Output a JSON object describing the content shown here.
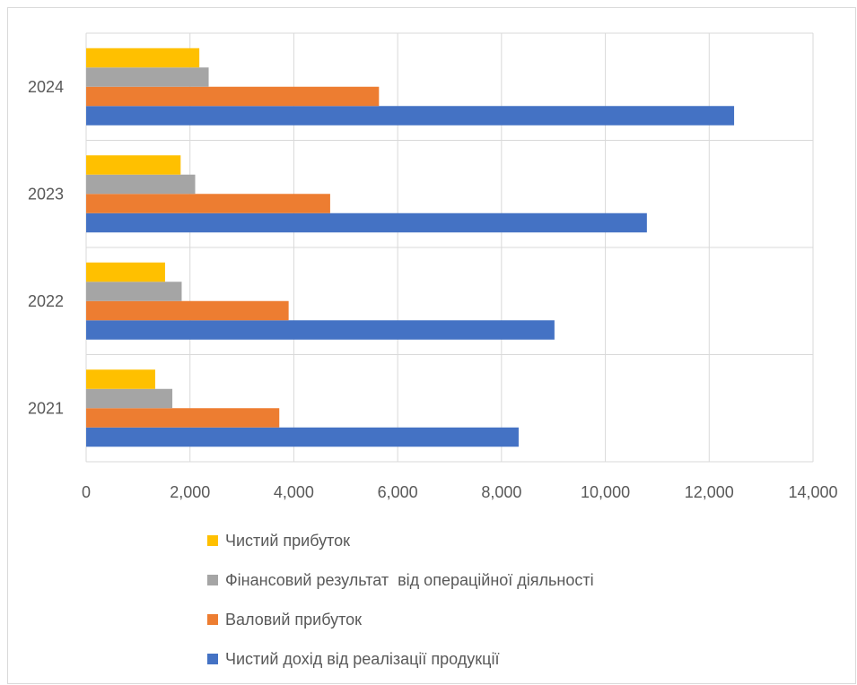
{
  "chart_data": {
    "type": "bar",
    "orientation": "horizontal",
    "categories": [
      "2021",
      "2022",
      "2023",
      "2024"
    ],
    "series": [
      {
        "name": "Чистий дохід від реалізації продукції",
        "color": "#4472C4",
        "values": [
          8330,
          9020,
          10800,
          12480
        ]
      },
      {
        "name": "Валовий прибуток",
        "color": "#ED7D31",
        "values": [
          3720,
          3900,
          4700,
          5640
        ]
      },
      {
        "name": "Фінансовий результат  від операційної діяльності",
        "color": "#A5A5A5",
        "values": [
          1660,
          1840,
          2100,
          2360
        ]
      },
      {
        "name": "Чистий прибуток",
        "color": "#FFC000",
        "values": [
          1330,
          1520,
          1820,
          2180
        ]
      }
    ],
    "xlim": [
      0,
      14000
    ],
    "x_ticks": [
      "0",
      "2,000",
      "4,000",
      "6,000",
      "8,000",
      "10,000",
      "12,000",
      "14,000"
    ],
    "grid": true,
    "legend_position": "bottom",
    "legend_order": [
      "Чистий прибуток",
      "Фінансовий результат  від операційної діяльності",
      "Валовий прибуток",
      "Чистий дохід від реалізації продукції"
    ]
  }
}
